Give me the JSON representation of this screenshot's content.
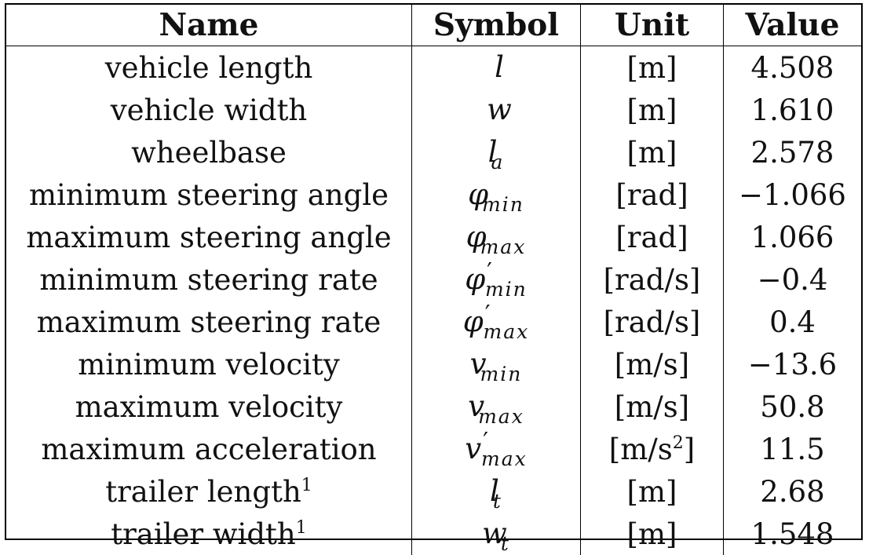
{
  "table": {
    "headers": [
      "Name",
      "Symbol",
      "Unit",
      "Value"
    ],
    "rows": [
      {
        "name": "vehicle length",
        "name_sup": "",
        "sym": "l",
        "sub": "",
        "prime": "",
        "unit": "[m]",
        "unit_sup": "",
        "unit_end": "",
        "value": "4.508"
      },
      {
        "name": "vehicle width",
        "name_sup": "",
        "sym": "w",
        "sub": "",
        "prime": "",
        "unit": "[m]",
        "unit_sup": "",
        "unit_end": "",
        "value": "1.610"
      },
      {
        "name": "wheelbase",
        "name_sup": "",
        "sym": "l",
        "sub": "a",
        "prime": "",
        "unit": "[m]",
        "unit_sup": "",
        "unit_end": "",
        "value": "2.578"
      },
      {
        "name": "minimum steering angle",
        "name_sup": "",
        "sym": "φ",
        "sub": "min",
        "prime": "",
        "unit": "[rad]",
        "unit_sup": "",
        "unit_end": "",
        "value": "−1.066"
      },
      {
        "name": "maximum steering angle",
        "name_sup": "",
        "sym": "φ",
        "sub": "max",
        "prime": "",
        "unit": "[rad]",
        "unit_sup": "",
        "unit_end": "",
        "value": "1.066"
      },
      {
        "name": "minimum steering rate",
        "name_sup": "",
        "sym": "φ",
        "sub": "min",
        "prime": "′",
        "unit": "[rad/s]",
        "unit_sup": "",
        "unit_end": "",
        "value": "−0.4"
      },
      {
        "name": "maximum steering rate",
        "name_sup": "",
        "sym": "φ",
        "sub": "max",
        "prime": "′",
        "unit": "[rad/s]",
        "unit_sup": "",
        "unit_end": "",
        "value": "0.4"
      },
      {
        "name": "minimum velocity",
        "name_sup": "",
        "sym": "v",
        "sub": "min",
        "prime": "",
        "unit": "[m/s]",
        "unit_sup": "",
        "unit_end": "",
        "value": "−13.6"
      },
      {
        "name": "maximum velocity",
        "name_sup": "",
        "sym": "v",
        "sub": "max",
        "prime": "",
        "unit": "[m/s]",
        "unit_sup": "",
        "unit_end": "",
        "value": "50.8"
      },
      {
        "name": "maximum acceleration",
        "name_sup": "",
        "sym": "v",
        "sub": "max",
        "prime": "′",
        "unit": "[m/s",
        "unit_sup": "2",
        "unit_end": "]",
        "value": "11.5"
      },
      {
        "name": "trailer length",
        "name_sup": "1",
        "sym": "l",
        "sub": "t",
        "prime": "",
        "unit": "[m]",
        "unit_sup": "",
        "unit_end": "",
        "value": "2.68"
      },
      {
        "name": "trailer width",
        "name_sup": "1",
        "sym": "w",
        "sub": "t",
        "prime": "",
        "unit": "[m]",
        "unit_sup": "",
        "unit_end": "",
        "value": "1.548"
      }
    ]
  }
}
